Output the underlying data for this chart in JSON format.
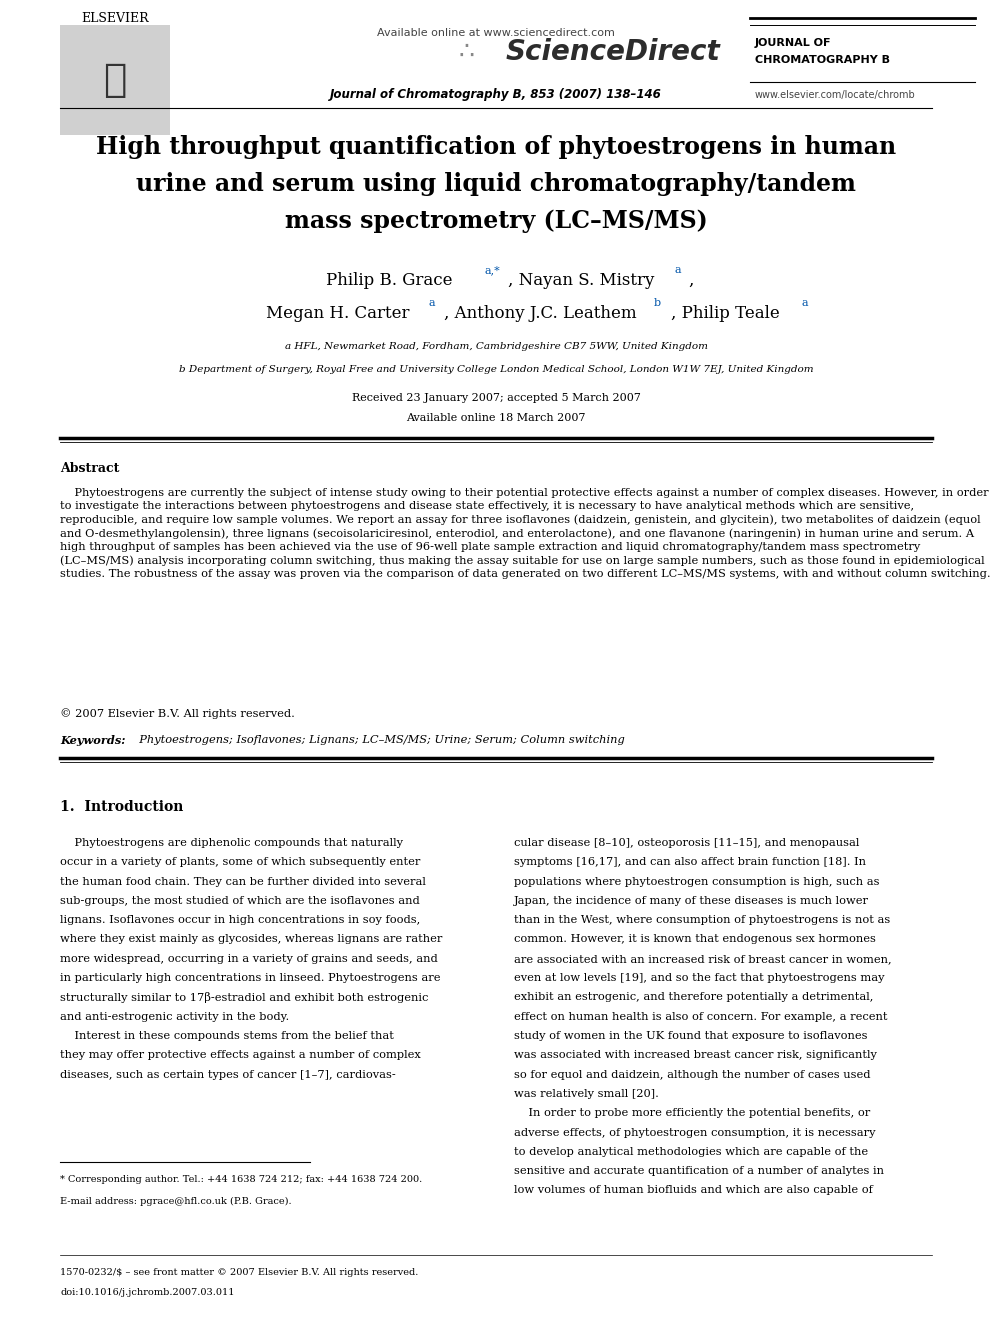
{
  "bg_color": "#ffffff",
  "available_online": "Available online at www.sciencedirect.com",
  "sciencedirect": "ScienceDirect",
  "journal_name_top": "JOURNAL OF",
  "journal_name_bot": "CHROMATOGRAPHY B",
  "journal_ref": "Journal of Chromatography B, 853 (2007) 138–146",
  "website": "www.elsevier.com/locate/chromb",
  "elsevier_text": "ELSEVIER",
  "title_line1": "High throughput quantification of phytoestrogens in human",
  "title_line2": "urine and serum using liquid chromatography/tandem",
  "title_line3": "mass spectrometry (LC–MS/MS)",
  "author_line1": "Philip B. Grace ",
  "author_line1_sup": "a,*",
  "author_line1b": ", Nayan S. Mistry ",
  "author_line1b_sup": "a",
  "author_line1c": ",",
  "author_line2": "Megan H. Carter ",
  "author_line2_sup": "a",
  "author_line2b": ", Anthony J.C. Leathem ",
  "author_line2b_sup": "b",
  "author_line2c": ", Philip Teale ",
  "author_line2c_sup": "a",
  "affil_a": "a HFL, Newmarket Road, Fordham, Cambridgeshire CB7 5WW, United Kingdom",
  "affil_b": "b Department of Surgery, Royal Free and University College London Medical School, London W1W 7EJ, United Kingdom",
  "received": "Received 23 January 2007; accepted 5 March 2007",
  "available": "Available online 18 March 2007",
  "abstract_title": "Abstract",
  "abstract_para": "    Phytoestrogens are currently the subject of intense study owing to their potential protective effects against a number of complex diseases. However, in order to investigate the interactions between phytoestrogens and disease state effectively, it is necessary to have analytical methods which are sensitive, reproducible, and require low sample volumes. We report an assay for three isoflavones (daidzein, genistein, and glycitein), two metabolites of daidzein (equol and O-desmethylangolensin), three lignans (secoisolariciresinol, enterodiol, and enterolactone), and one flavanone (naringenin) in human urine and serum. A high throughput of samples has been achieved via the use of 96-well plate sample extraction and liquid chromatography/tandem mass spectrometry (LC–MS/MS) analysis incorporating column switching, thus making the assay suitable for use on large sample numbers, such as those found in epidemiological studies. The robustness of the assay was proven via the comparison of data generated on two different LC–MS/MS systems, with and without column switching.",
  "abstract_copy": "© 2007 Elsevier B.V. All rights reserved.",
  "keywords_bold": "Keywords:",
  "keywords_rest": "  Phytoestrogens; Isoflavones; Lignans; LC–MS/MS; Urine; Serum; Column switching",
  "intro_title": "1.  Introduction",
  "left_col_lines": [
    "    Phytoestrogens are diphenolic compounds that naturally",
    "occur in a variety of plants, some of which subsequently enter",
    "the human food chain. They can be further divided into several",
    "sub-groups, the most studied of which are the isoflavones and",
    "lignans. Isoflavones occur in high concentrations in soy foods,",
    "where they exist mainly as glycosides, whereas lignans are rather",
    "more widespread, occurring in a variety of grains and seeds, and",
    "in particularly high concentrations in linseed. Phytoestrogens are",
    "structurally similar to 17β-estradiol and exhibit both estrogenic",
    "and anti-estrogenic activity in the body.",
    "    Interest in these compounds stems from the belief that",
    "they may offer protective effects against a number of complex",
    "diseases, such as certain types of cancer [1–7], cardiovas-"
  ],
  "right_col_lines": [
    "cular disease [8–10], osteoporosis [11–15], and menopausal",
    "symptoms [16,17], and can also affect brain function [18]. In",
    "populations where phytoestrogen consumption is high, such as",
    "Japan, the incidence of many of these diseases is much lower",
    "than in the West, where consumption of phytoestrogens is not as",
    "common. However, it is known that endogenous sex hormones",
    "are associated with an increased risk of breast cancer in women,",
    "even at low levels [19], and so the fact that phytoestrogens may",
    "exhibit an estrogenic, and therefore potentially a detrimental,",
    "effect on human health is also of concern. For example, a recent",
    "study of women in the UK found that exposure to isoflavones",
    "was associated with increased breast cancer risk, significantly",
    "so for equol and daidzein, although the number of cases used",
    "was relatively small [20].",
    "    In order to probe more efficiently the potential benefits, or",
    "adverse effects, of phytoestrogen consumption, it is necessary",
    "to develop analytical methodologies which are capable of the",
    "sensitive and accurate quantification of a number of analytes in",
    "low volumes of human biofluids and which are also capable of"
  ],
  "footnote_line1": "* Corresponding author. Tel.: +44 1638 724 212; fax: +44 1638 724 200.",
  "footnote_line2": "E-mail address: pgrace@hfl.co.uk (P.B. Grace).",
  "issn_line": "1570-0232/$ – see front matter © 2007 Elsevier B.V. All rights reserved.",
  "doi_line": "doi:10.1016/j.jchromb.2007.03.011"
}
